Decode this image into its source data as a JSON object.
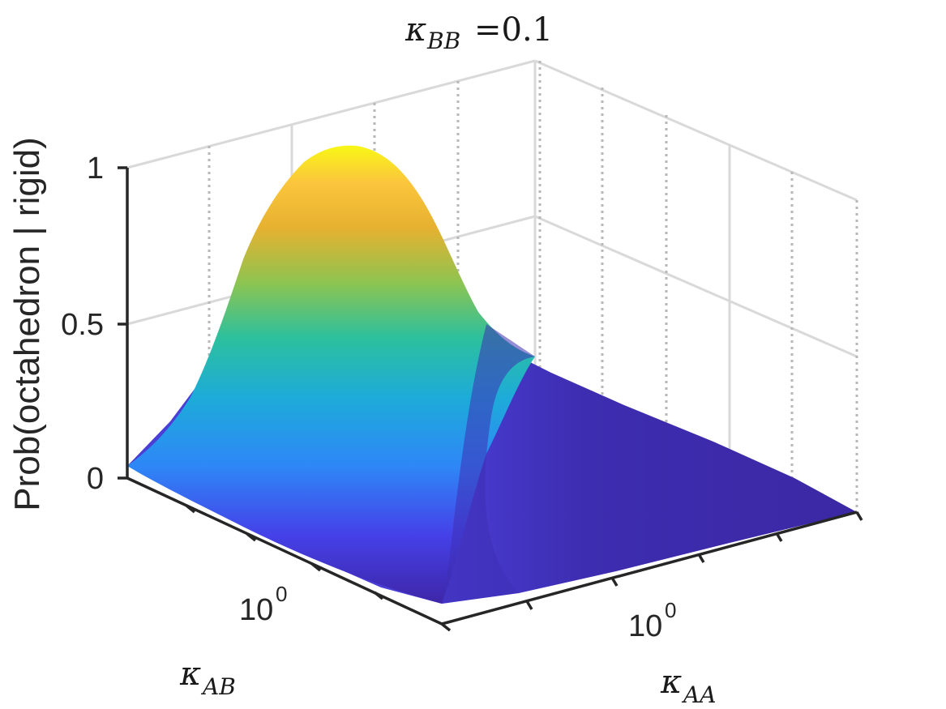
{
  "chart_data": {
    "type": "surface",
    "title": {
      "symbol": "κ",
      "subscript": "BB",
      "suffix": " =0.1"
    },
    "zlabel": "Prob(octahedron | rigid)",
    "xlabel": {
      "symbol": "κ",
      "subscript": "AA"
    },
    "ylabel": {
      "symbol": "κ",
      "subscript": "AB"
    },
    "x_scale": "log",
    "y_scale": "log",
    "x_tick_label": {
      "base": "10",
      "exp": "0"
    },
    "y_tick_label": {
      "base": "10",
      "exp": "0"
    },
    "z_ticks": [
      "0",
      "0.5",
      "1"
    ],
    "zlim": [
      0,
      1
    ],
    "grid": true,
    "colormap": "parula",
    "surface_peak": {
      "z": 1.0
    },
    "surface_note": "probability peaks near 1 at low kAA and mid kAB, decays to ~0 for high kAA"
  }
}
